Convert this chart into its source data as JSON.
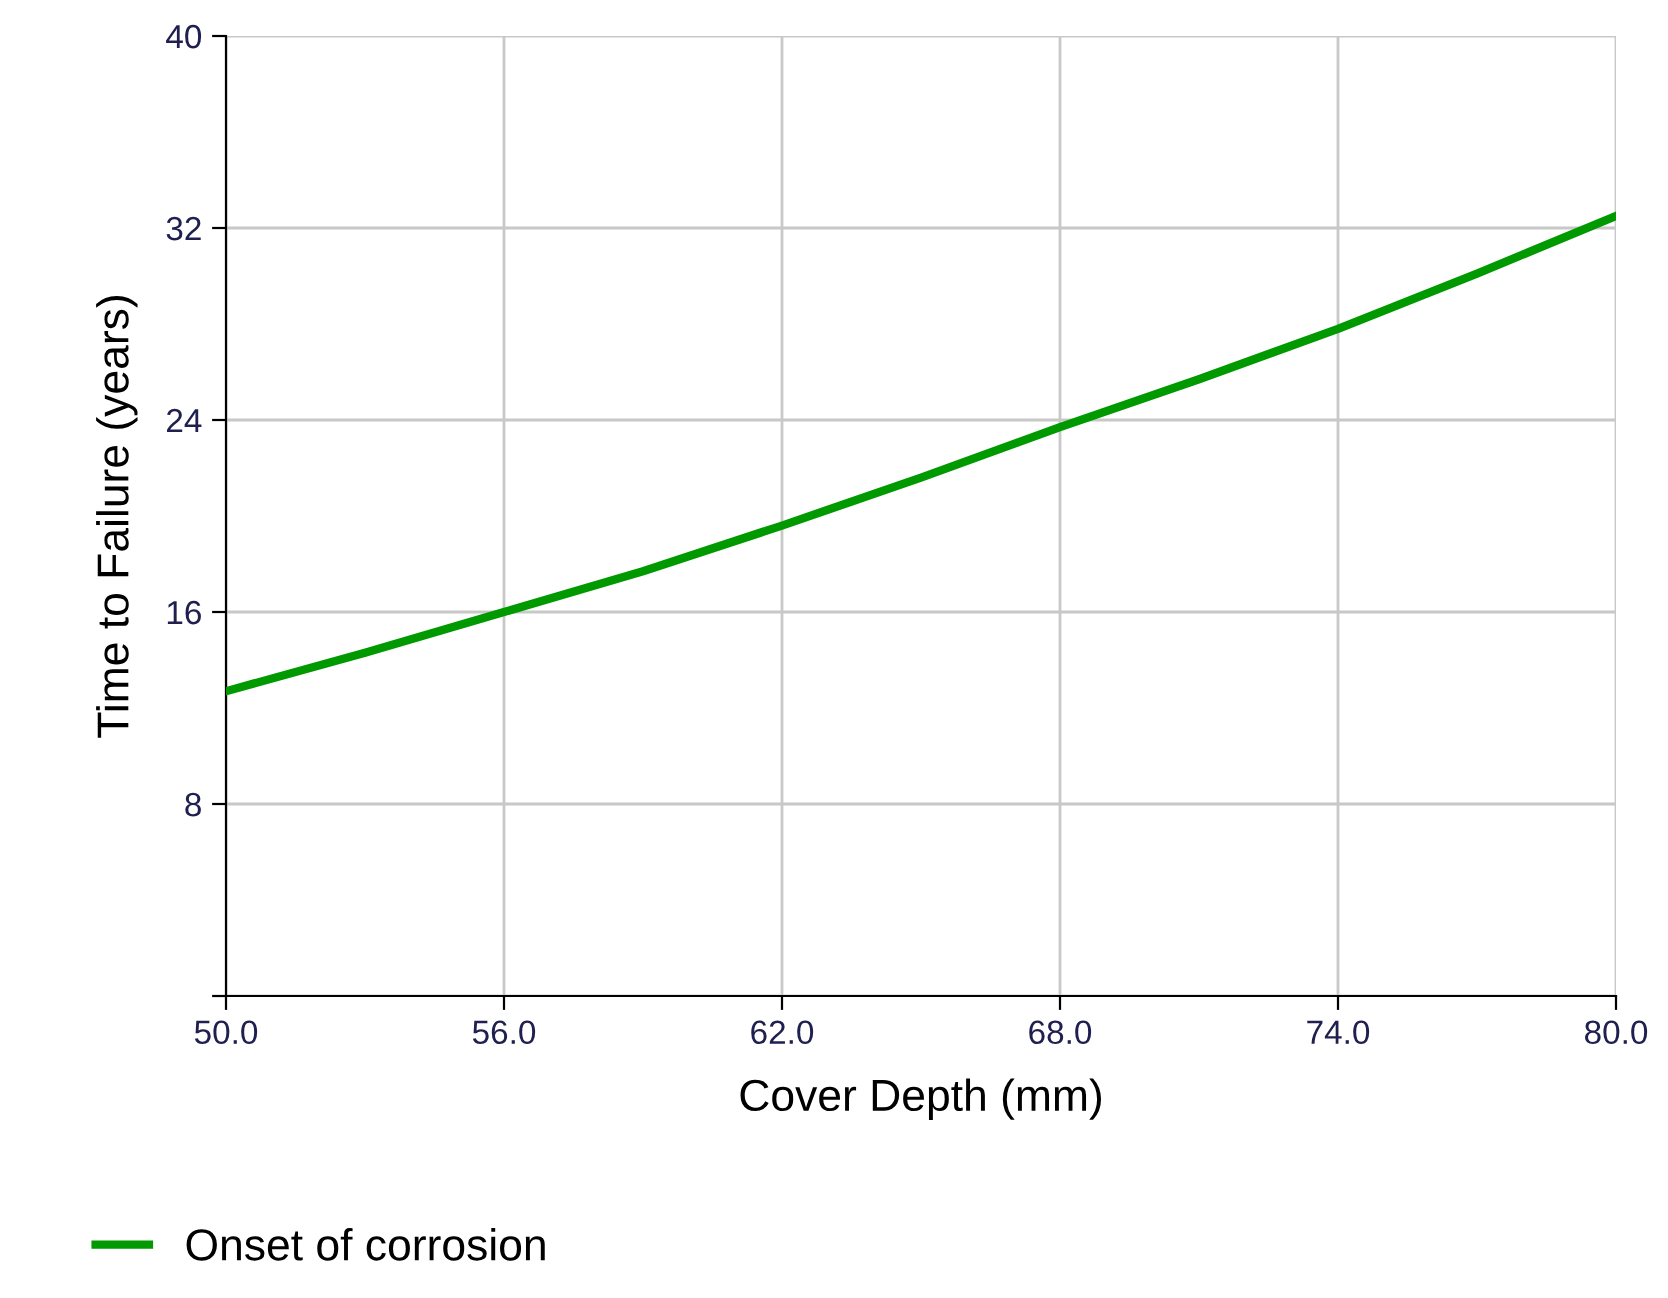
{
  "chart_data": {
    "type": "line",
    "xlabel": "Cover Depth (mm)",
    "ylabel": "Time to Failure (years)",
    "x": [
      50,
      53,
      56,
      59,
      62,
      65,
      68,
      71,
      74,
      77,
      80
    ],
    "series": [
      {
        "name": "Onset of corrosion",
        "color": "#009900",
        "values": [
          12.7,
          14.3,
          16.0,
          17.7,
          19.6,
          21.6,
          23.7,
          25.7,
          27.8,
          30.1,
          32.5
        ]
      }
    ],
    "xlim": [
      50,
      80
    ],
    "xticks": [
      {
        "value": 50,
        "label": "50.0"
      },
      {
        "value": 56,
        "label": "56.0"
      },
      {
        "value": 62,
        "label": "62.0"
      },
      {
        "value": 68,
        "label": "68.0"
      },
      {
        "value": 74,
        "label": "74.0"
      },
      {
        "value": 80,
        "label": "80.0"
      }
    ],
    "ylim": [
      0,
      40
    ],
    "yticks": [
      {
        "value": 0,
        "label": null
      },
      8,
      16,
      24,
      32,
      40
    ],
    "grid": true,
    "legend": "bottom left",
    "marker": "none",
    "line_style": "solid"
  }
}
